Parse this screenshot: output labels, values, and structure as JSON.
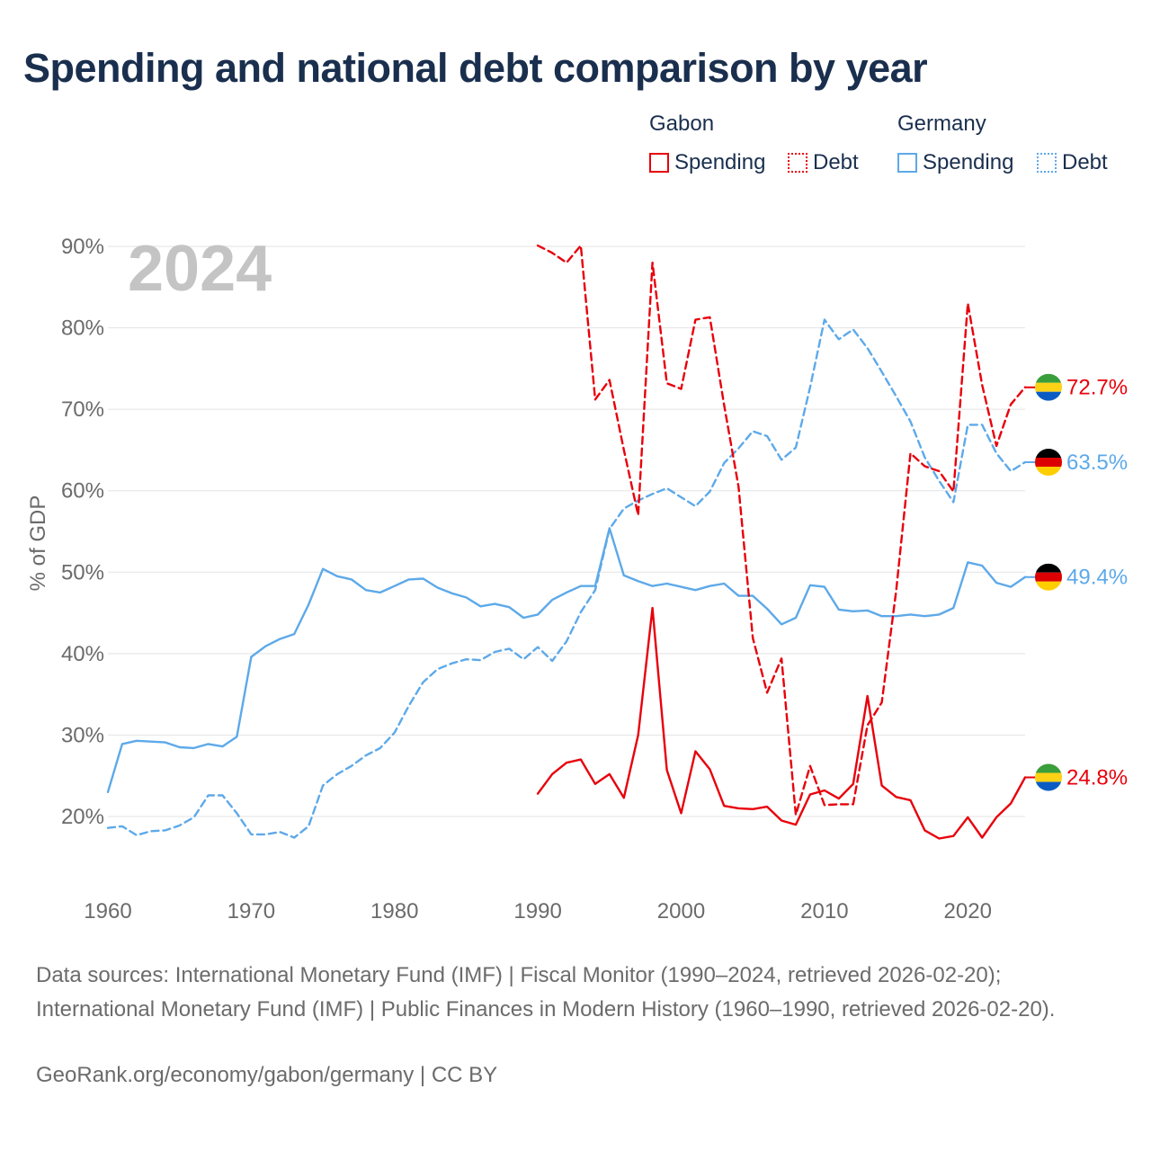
{
  "title": "Spending and national debt comparison by year",
  "legend": {
    "groups": [
      {
        "name": "Gabon",
        "color": "#e8000b",
        "items": [
          "Spending",
          "Debt"
        ]
      },
      {
        "name": "Germany",
        "color": "#5da9e9",
        "items": [
          "Spending",
          "Debt"
        ]
      }
    ]
  },
  "footer": {
    "sources": "Data sources: International Monetary Fund (IMF) | Fiscal Monitor (1990–2024, retrieved 2026-02-20); International Monetary Fund (IMF) | Public Finances in Modern History (1960–1990, retrieved 2026-02-20).",
    "credit": "GeoRank.org/economy/gabon/germany | CC BY"
  },
  "chart_data": {
    "type": "line",
    "title": "Spending and national debt comparison by year",
    "year_label": "2024",
    "xlabel": "",
    "ylabel": "% of GDP",
    "xlim": [
      1960,
      2024
    ],
    "ylim": [
      14,
      92
    ],
    "x_ticks": [
      1960,
      1970,
      1980,
      1990,
      2000,
      2010,
      2020
    ],
    "y_ticks": [
      20,
      30,
      40,
      50,
      60,
      70,
      80,
      90
    ],
    "y_tick_labels": [
      "20%",
      "30%",
      "40%",
      "50%",
      "60%",
      "70%",
      "80%",
      "90%"
    ],
    "grid": true,
    "series": [
      {
        "name": "Germany Debt",
        "country": "Germany",
        "measure": "Debt",
        "color": "#5da9e9",
        "dash": "dashed",
        "start": 1960,
        "values": [
          18.6,
          18.8,
          17.7,
          18.2,
          18.3,
          18.9,
          19.9,
          22.6,
          22.6,
          20.4,
          17.8,
          17.8,
          18.1,
          17.4,
          18.8,
          23.8,
          25.2,
          26.2,
          27.5,
          28.4,
          30.3,
          33.6,
          36.5,
          38.1,
          38.8,
          39.3,
          39.2,
          40.2,
          40.6,
          39.3,
          40.8,
          39.1,
          41.5,
          45.1,
          47.8,
          55.3,
          57.8,
          58.8,
          59.6,
          60.3,
          59.2,
          58.1,
          59.9,
          63.4,
          65.2,
          67.3,
          66.7,
          63.8,
          65.3,
          72.7,
          81.0,
          78.6,
          79.8,
          77.5,
          74.6,
          71.6,
          68.5,
          64.1,
          61.2,
          58.6,
          68.1,
          68.1,
          64.6,
          62.4,
          63.5
        ],
        "end_label": "63.5%"
      },
      {
        "name": "Germany Spending",
        "country": "Germany",
        "measure": "Spending",
        "color": "#5da9e9",
        "dash": "solid",
        "start": 1960,
        "values": [
          23.0,
          28.9,
          29.3,
          29.2,
          29.1,
          28.5,
          28.4,
          28.9,
          28.6,
          29.8,
          39.6,
          40.9,
          41.8,
          42.4,
          46.0,
          50.4,
          49.5,
          49.1,
          47.8,
          47.5,
          48.3,
          49.1,
          49.2,
          48.1,
          47.4,
          46.9,
          45.8,
          46.1,
          45.7,
          44.4,
          44.8,
          46.6,
          47.5,
          48.3,
          48.3,
          55.4,
          49.6,
          48.9,
          48.3,
          48.6,
          48.2,
          47.8,
          48.3,
          48.6,
          47.1,
          47.1,
          45.5,
          43.6,
          44.4,
          48.4,
          48.2,
          45.4,
          45.2,
          45.3,
          44.6,
          44.6,
          44.8,
          44.6,
          44.8,
          45.6,
          51.2,
          50.8,
          48.7,
          48.2,
          49.4
        ],
        "end_label": "49.4%"
      },
      {
        "name": "Gabon Debt",
        "country": "Gabon",
        "measure": "Debt",
        "color": "#e8000b",
        "dash": "dashed",
        "start": 1990,
        "values": [
          90.1,
          89.2,
          88.0,
          90.1,
          71.2,
          73.6,
          65.0,
          57.0,
          88.0,
          73.2,
          72.5,
          81.0,
          81.3,
          70.5,
          60.5,
          41.9,
          35.2,
          39.4,
          20.2,
          26.2,
          21.4,
          21.5,
          21.5,
          31.2,
          34.0,
          47.7,
          64.6,
          63.0,
          62.4,
          59.9,
          83.0,
          73.0,
          65.5,
          70.6,
          72.7
        ],
        "end_label": "72.7%"
      },
      {
        "name": "Gabon Spending",
        "country": "Gabon",
        "measure": "Spending",
        "color": "#e8000b",
        "dash": "solid",
        "start": 1990,
        "values": [
          22.8,
          25.2,
          26.6,
          27.0,
          24.0,
          25.2,
          22.3,
          30.0,
          45.6,
          25.7,
          20.4,
          28.0,
          25.8,
          21.3,
          21.0,
          20.9,
          21.2,
          19.5,
          19.0,
          22.7,
          23.2,
          22.2,
          24.0,
          34.8,
          23.8,
          22.4,
          22.0,
          18.3,
          17.3,
          17.6,
          19.9,
          17.4,
          19.9,
          21.6,
          24.8
        ],
        "end_label": "24.8%"
      }
    ]
  }
}
